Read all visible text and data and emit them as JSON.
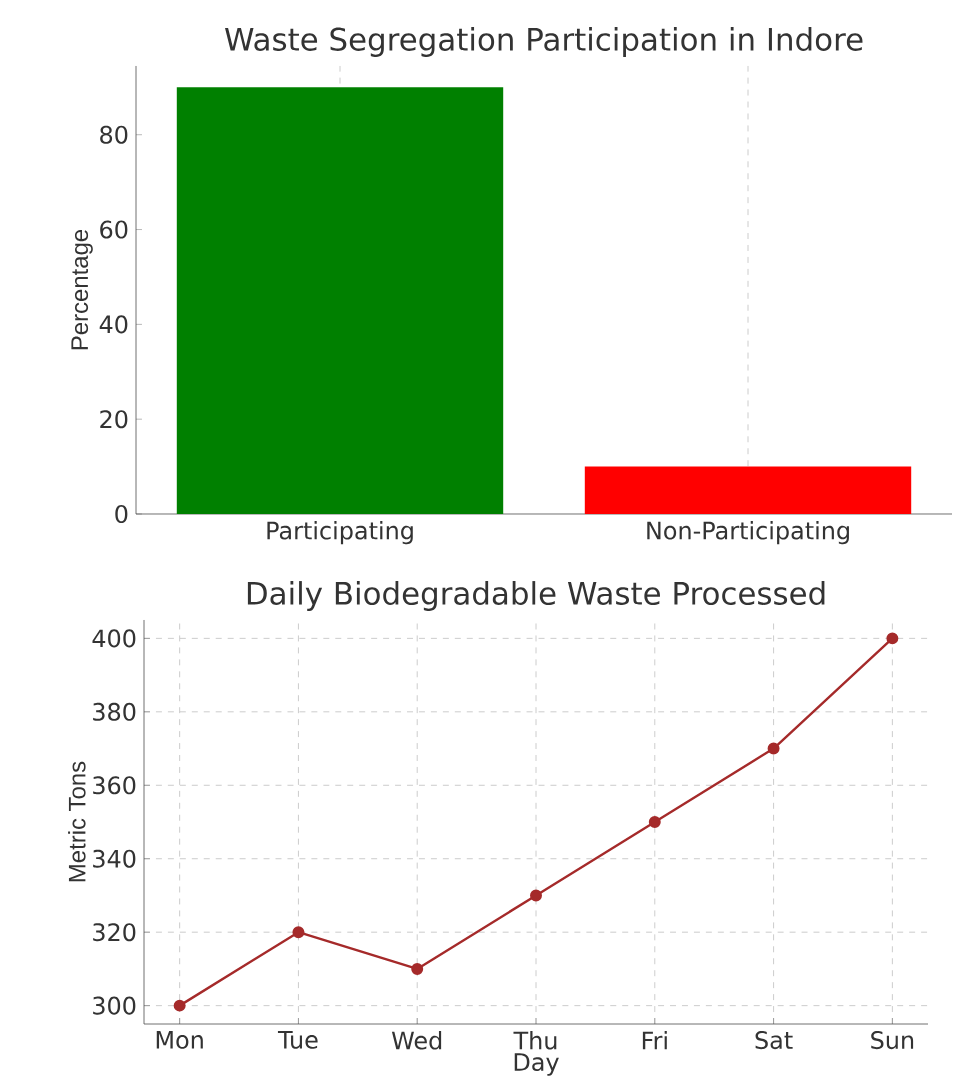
{
  "chart_data": [
    {
      "type": "bar",
      "title": "Waste Segregation Participation in Indore",
      "ylabel": "Percentage",
      "categories": [
        "Participating",
        "Non-Participating"
      ],
      "values": [
        90,
        10
      ],
      "colors": [
        "#008000",
        "#ff0000"
      ],
      "ylim": [
        0,
        94.5
      ],
      "yticks": [
        0,
        20,
        40,
        60,
        80
      ],
      "grid": "x"
    },
    {
      "type": "line",
      "title": "Daily Biodegradable Waste Processed",
      "xlabel": "Day",
      "ylabel": "Metric Tons",
      "categories": [
        "Mon",
        "Tue",
        "Wed",
        "Thu",
        "Fri",
        "Sat",
        "Sun"
      ],
      "values": [
        300,
        320,
        310,
        330,
        350,
        370,
        400
      ],
      "color": "#a52a2a",
      "marker": "circle",
      "ylim": [
        295,
        405
      ],
      "yticks": [
        300,
        320,
        340,
        360,
        380,
        400
      ],
      "grid": true
    }
  ]
}
